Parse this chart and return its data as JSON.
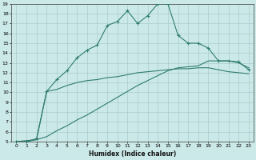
{
  "title": "",
  "xlabel": "Humidex (Indice chaleur)",
  "ylabel": "",
  "bg_color": "#cce9e9",
  "line_color": "#2e7d6e",
  "grid_color": "#aacccc",
  "xlim": [
    -0.5,
    23.5
  ],
  "ylim": [
    5,
    19
  ],
  "xticks": [
    0,
    1,
    2,
    3,
    4,
    5,
    6,
    7,
    8,
    9,
    10,
    11,
    12,
    13,
    14,
    15,
    16,
    17,
    18,
    19,
    20,
    21,
    22,
    23
  ],
  "yticks": [
    5,
    6,
    7,
    8,
    9,
    10,
    11,
    12,
    13,
    14,
    15,
    16,
    17,
    18,
    19
  ],
  "curve1_x": [
    0,
    1,
    2,
    3,
    4,
    5,
    6,
    7,
    8,
    9,
    10,
    11,
    12,
    13,
    14,
    15,
    16,
    17,
    18,
    19,
    20,
    21,
    22,
    23
  ],
  "curve1_y": [
    5.0,
    5.0,
    5.3,
    10.1,
    11.3,
    12.2,
    13.5,
    14.3,
    14.8,
    16.8,
    17.2,
    18.3,
    17.0,
    17.8,
    19.0,
    19.0,
    15.8,
    15.0,
    15.0,
    14.5,
    13.2,
    13.2,
    13.1,
    12.3
  ],
  "curve2_x": [
    0,
    2,
    3,
    4,
    5,
    6,
    7,
    8,
    9,
    10,
    11,
    12,
    13,
    14,
    15,
    16,
    17,
    18,
    19,
    20,
    21,
    22,
    23
  ],
  "curve2_y": [
    5.0,
    5.2,
    10.1,
    10.3,
    10.7,
    11.0,
    11.2,
    11.3,
    11.5,
    11.6,
    11.8,
    12.0,
    12.1,
    12.2,
    12.3,
    12.4,
    12.4,
    12.5,
    12.5,
    12.3,
    12.1,
    12.0,
    11.9
  ],
  "curve3_x": [
    0,
    1,
    2,
    3,
    4,
    5,
    6,
    7,
    8,
    9,
    10,
    11,
    12,
    13,
    14,
    15,
    16,
    17,
    18,
    19,
    20,
    21,
    22,
    23
  ],
  "curve3_y": [
    5.0,
    5.0,
    5.2,
    5.5,
    6.1,
    6.6,
    7.2,
    7.7,
    8.3,
    8.9,
    9.5,
    10.1,
    10.7,
    11.2,
    11.7,
    12.2,
    12.5,
    12.6,
    12.7,
    13.2,
    13.2,
    13.2,
    13.0,
    12.5
  ]
}
